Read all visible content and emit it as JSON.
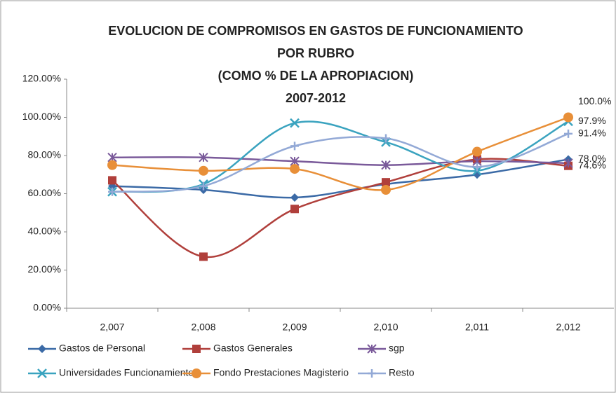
{
  "chart_data": {
    "type": "line",
    "title": [
      "EVOLUCION DE COMPROMISOS EN GASTOS DE FUNCIONAMIENTO",
      "POR RUBRO",
      "(COMO % DE LA APROPIACION)",
      "2007-2012"
    ],
    "categories": [
      "2,007",
      "2,008",
      "2,009",
      "2,010",
      "2,011",
      "2,012"
    ],
    "ylim": [
      0,
      120
    ],
    "yticks": [
      {
        "value": 0,
        "label": "0.00%"
      },
      {
        "value": 20,
        "label": "20.00%"
      },
      {
        "value": 40,
        "label": "40.00%"
      },
      {
        "value": 60,
        "label": "60.00%"
      },
      {
        "value": 80,
        "label": "80.00%"
      },
      {
        "value": 100,
        "label": "100.00%"
      },
      {
        "value": 120,
        "label": "120.00%"
      }
    ],
    "grid": false,
    "legend": "bottom",
    "series": [
      {
        "name": "Gastos de Personal",
        "color": "#3b6aa6",
        "marker": "diamond",
        "values": [
          64,
          62,
          58,
          65,
          70,
          78
        ],
        "value_labels": [
          null,
          null,
          null,
          null,
          null,
          "78.0%"
        ]
      },
      {
        "name": "Gastos Generales",
        "color": "#b03f3b",
        "marker": "square",
        "values": [
          67,
          27,
          52,
          66,
          78,
          74.6
        ],
        "value_labels": [
          null,
          null,
          null,
          null,
          null,
          "74.6%"
        ]
      },
      {
        "name": "sgp",
        "color": "#7a5a9a",
        "marker": "star",
        "values": [
          79,
          79,
          77,
          75,
          77,
          76
        ]
      },
      {
        "name": "Universidades Funcionamiento",
        "color": "#3aa3bf",
        "marker": "x",
        "values": [
          61,
          65,
          97,
          87,
          72,
          97.9
        ],
        "value_labels": [
          null,
          null,
          null,
          null,
          null,
          "97.9%"
        ]
      },
      {
        "name": "Fondo Prestaciones Magisterio",
        "color": "#e88f38",
        "marker": "circle",
        "values": [
          75,
          72,
          73,
          62,
          82,
          100
        ],
        "value_labels": [
          null,
          null,
          null,
          null,
          null,
          "100.0%"
        ]
      },
      {
        "name": "Resto",
        "color": "#93a9d6",
        "marker": "plus",
        "values": [
          61,
          64,
          85,
          89,
          74,
          91.4
        ],
        "value_labels": [
          null,
          null,
          null,
          null,
          null,
          "91.4%"
        ]
      }
    ]
  }
}
